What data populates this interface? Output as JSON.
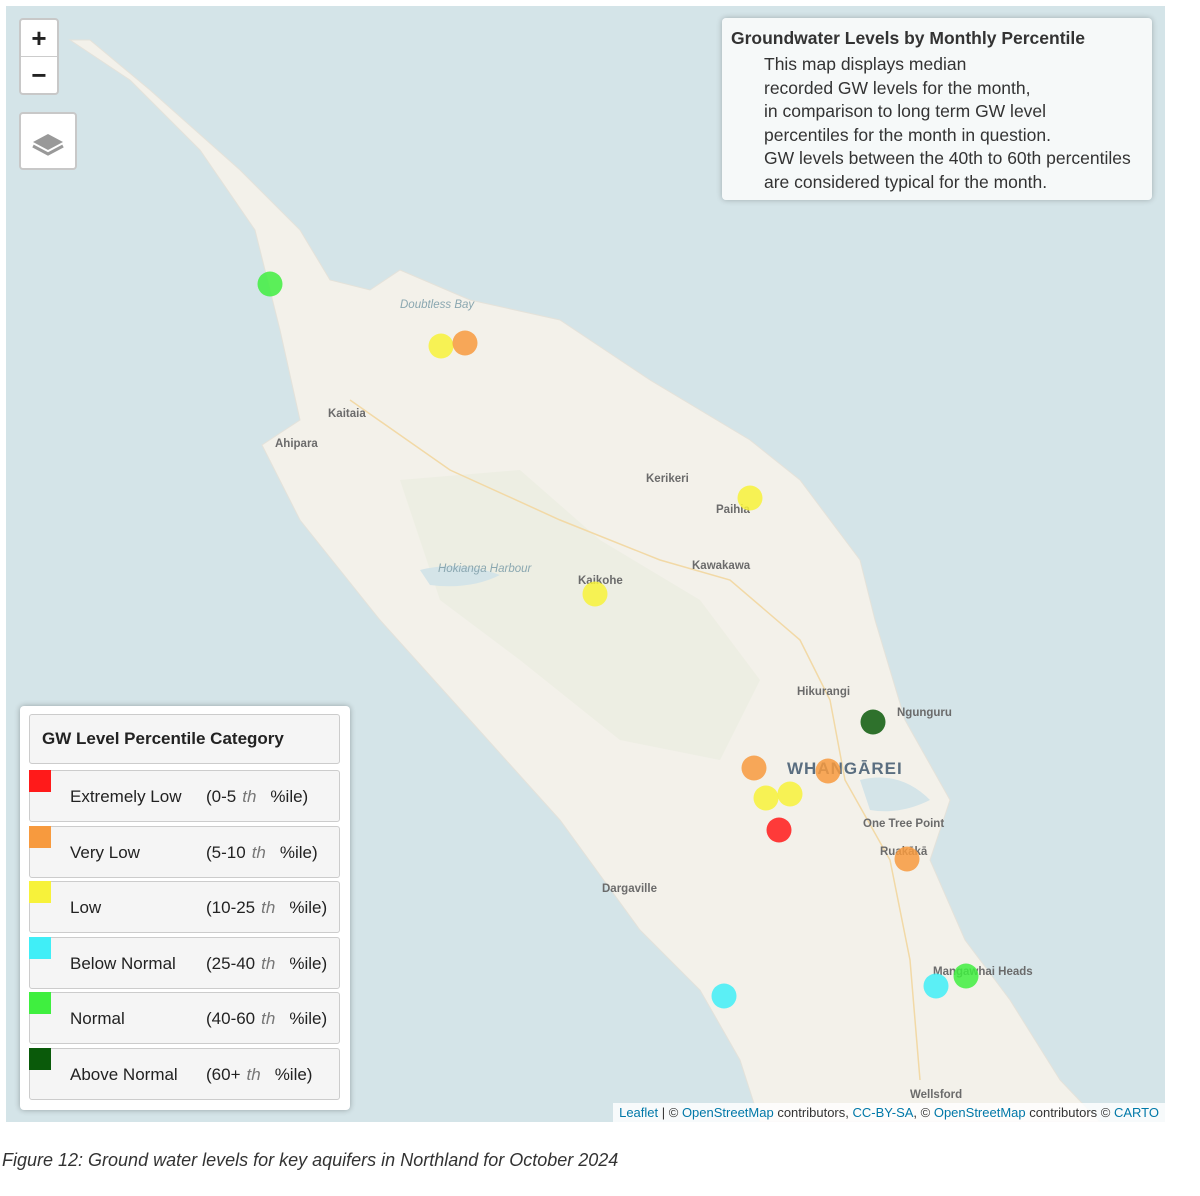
{
  "controls": {
    "zoom_in": "+",
    "zoom_out": "−"
  },
  "info_box": {
    "title": "Groundwater Levels by Monthly Percentile",
    "lines": [
      "This map displays median",
      "recorded GW levels for the month,",
      "in comparison to long term GW level",
      "percentiles for the month in question.",
      "GW levels between the 40th to 60th percentiles",
      "are considered typical for the month."
    ]
  },
  "places": [
    {
      "name": "Doubtless Bay",
      "kind": "water"
    },
    {
      "name": "Kaitaia",
      "kind": "town"
    },
    {
      "name": "Ahipara",
      "kind": "town"
    },
    {
      "name": "Kerikeri",
      "kind": "town"
    },
    {
      "name": "Paihia",
      "kind": "town"
    },
    {
      "name": "Hokianga Harbour",
      "kind": "water"
    },
    {
      "name": "Kaikohe",
      "kind": "town"
    },
    {
      "name": "Kawakawa",
      "kind": "town"
    },
    {
      "name": "Hikurangi",
      "kind": "town"
    },
    {
      "name": "Ngunguru",
      "kind": "town"
    },
    {
      "name": "WHANGĀREI",
      "kind": "city"
    },
    {
      "name": "One Tree Point",
      "kind": "town"
    },
    {
      "name": "Ruakākā",
      "kind": "town"
    },
    {
      "name": "Dargaville",
      "kind": "town"
    },
    {
      "name": "Mangawhai Heads",
      "kind": "town"
    },
    {
      "name": "Wellsford",
      "kind": "town"
    }
  ],
  "legend": {
    "title": "GW Level Percentile Category",
    "items": [
      {
        "name": "Extremely Low",
        "range": "(0-5",
        "suffix": "th",
        "unit": "%ile)",
        "color": "#ff1a1a"
      },
      {
        "name": "Very Low",
        "range": "(5-10",
        "suffix": "th",
        "unit": "%ile)",
        "color": "#f79a3e"
      },
      {
        "name": "Low",
        "range": "(10-25",
        "suffix": "th",
        "unit": "%ile)",
        "color": "#f7f23a"
      },
      {
        "name": "Below Normal",
        "range": "(25-40",
        "suffix": "th",
        "unit": "%ile)",
        "color": "#40eef7"
      },
      {
        "name": "Normal",
        "range": "(40-60",
        "suffix": "th",
        "unit": "%ile)",
        "color": "#3fef3f"
      },
      {
        "name": "Above Normal",
        "range": "(60+",
        "suffix": "th",
        "unit": "%ile)",
        "color": "#0a5a0a"
      }
    ]
  },
  "attribution": [
    {
      "text": "Leaflet",
      "link": true
    },
    {
      "text": " | © ",
      "link": false
    },
    {
      "text": "OpenStreetMap",
      "link": true
    },
    {
      "text": " contributors, ",
      "link": false
    },
    {
      "text": "CC-BY-SA",
      "link": true
    },
    {
      "text": ", © ",
      "link": false
    },
    {
      "text": "OpenStreetMap",
      "link": true
    },
    {
      "text": " contributors © ",
      "link": false
    },
    {
      "text": "CARTO",
      "link": true
    }
  ],
  "caption": "Figure 12: Ground water levels for key aquifers in Northland for October 2024"
}
